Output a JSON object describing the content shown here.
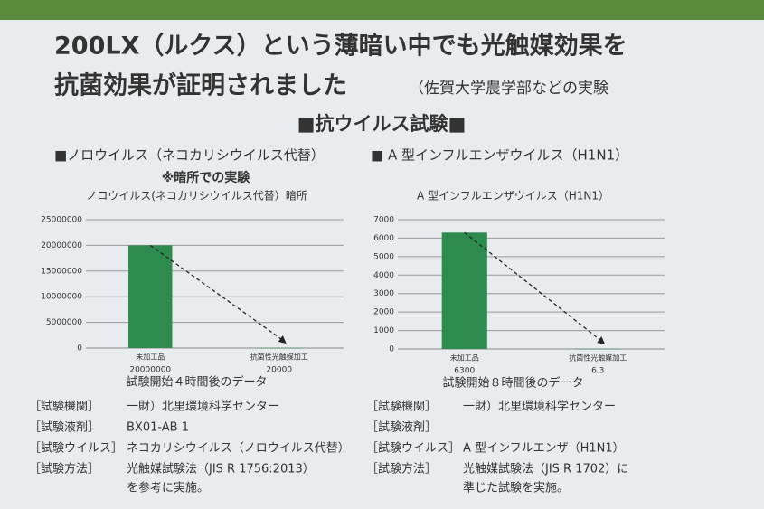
{
  "header": {
    "line1": "200LX（ルクス）という薄暗い中でも光触媒効果を",
    "line2": "抗菌効果が証明されました",
    "note": "（佐賀大学農学部などの実験"
  },
  "section_title": "■抗ウイルス試験■",
  "chart_data": [
    {
      "type": "bar",
      "heading": "■ノロウイルス（ネコカリシウイルス代替）",
      "note": "※暗所での実験",
      "title": "ノロウイルス(ネコカリシウイルス代替）暗所",
      "categories": [
        "未加工品",
        "抗菌性光触媒加工"
      ],
      "values": [
        20000000,
        20000
      ],
      "color": "#2e8b4e",
      "ylim": [
        0,
        25000000
      ],
      "yticks": [
        0,
        5000000,
        10000000,
        15000000,
        20000000,
        25000000
      ],
      "grid": true,
      "xlabel": "試験開始４時間後のデータ"
    },
    {
      "type": "bar",
      "heading": "■ A 型インフルエンザウイルス（H1N1）",
      "title": "A 型インフルエンザウイルス（H1N1）",
      "categories": [
        "未加工品",
        "抗菌性光触媒加工"
      ],
      "values": [
        6300,
        6.3
      ],
      "color": "#2e8b4e",
      "ylim": [
        0,
        7000
      ],
      "yticks": [
        0,
        1000,
        2000,
        3000,
        4000,
        5000,
        6000,
        7000
      ],
      "grid": true,
      "xlabel": "試験開始８時間後のデータ"
    }
  ],
  "panels": [
    {
      "rows": [
        {
          "label": "［試験機関］",
          "value": "一財）北里環境科学センター"
        },
        {
          "label": "［試験液剤］",
          "value": "BX01-AB 1"
        },
        {
          "label": "［試験ウイルス］",
          "value": "ネコカリシウイルス（ノロウイルス代替）"
        },
        {
          "label": "［試験方法］",
          "value": "光触媒試験法（JIS R 1756:2013）",
          "value2": "を参考に実施。"
        }
      ]
    },
    {
      "rows": [
        {
          "label": "［試験機関］",
          "value": "一財）北里環境科学センター"
        },
        {
          "label": "［試験液剤］"
        },
        {
          "label": "［試験ウイルス］",
          "value": "A 型インフルエンザ（H1N1）"
        },
        {
          "label": "［試験方法］",
          "value": "光触媒試験法（JIS R 1702）に",
          "value2": "準じた試験を実施。"
        }
      ]
    }
  ]
}
